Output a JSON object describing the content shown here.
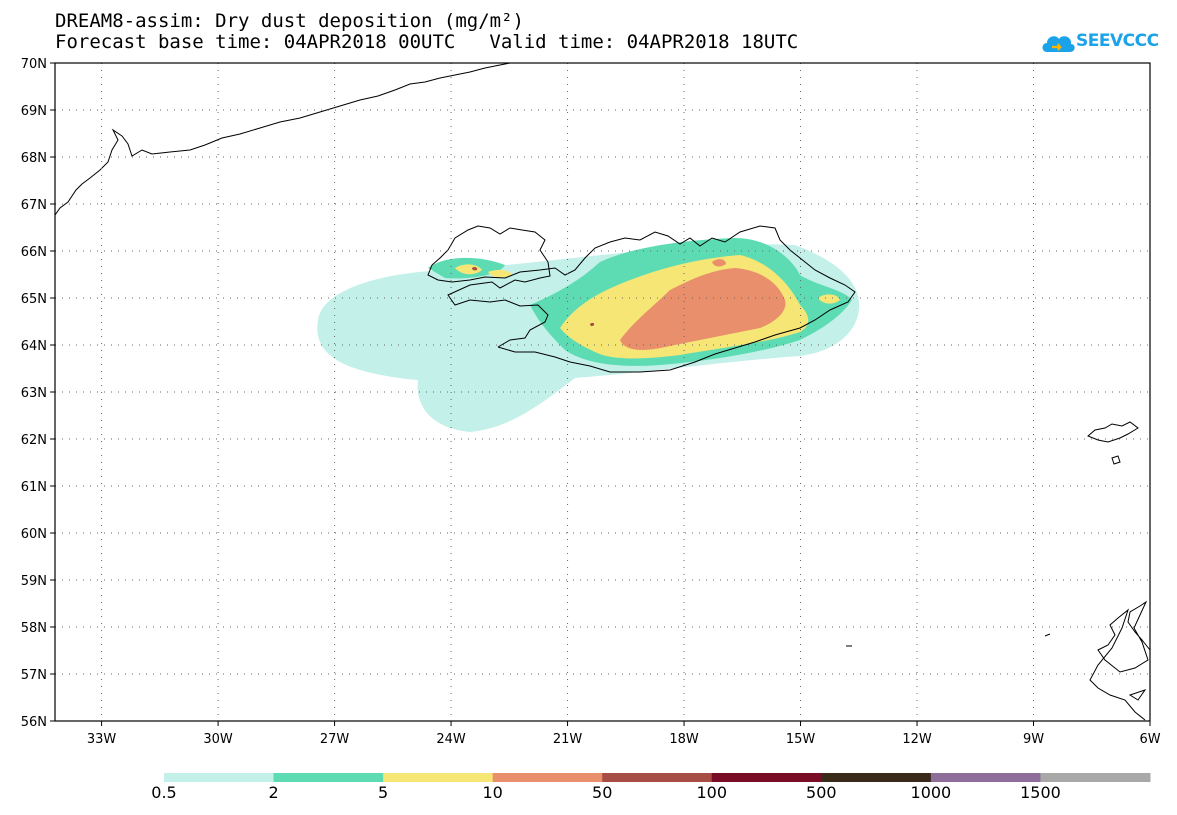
{
  "title": {
    "line1": "DREAM8-assim: Dry dust deposition (mg/m²)",
    "base_time": "Forecast base time: 04APR2018 00UTC",
    "valid_time": "Valid time: 04APR2018 18UTC"
  },
  "logo": {
    "text": "SEEVCCC",
    "icon": "cloud-logo-icon",
    "color": "#1aa3e8"
  },
  "map": {
    "lat_labels": [
      "70N",
      "69N",
      "68N",
      "67N",
      "66N",
      "65N",
      "64N",
      "63N",
      "62N",
      "61N",
      "60N",
      "59N",
      "58N",
      "57N",
      "56N"
    ],
    "lon_labels": [
      "33W",
      "30W",
      "27W",
      "24W",
      "21W",
      "18W",
      "15W",
      "12W",
      "9W",
      "6W"
    ],
    "lat_range": [
      56,
      70
    ],
    "lon_range": [
      -34.2,
      -6
    ],
    "grid": "dotted",
    "coastline_color": "#000000"
  },
  "colorbar": {
    "labels": [
      "0.5",
      "2",
      "5",
      "10",
      "50",
      "100",
      "500",
      "1000",
      "1500"
    ],
    "colors": [
      "#c4f0ea",
      "#5ddcb4",
      "#f5e675",
      "#ea8f6b",
      "#a64d44",
      "#7a0d26",
      "#3a2a1a",
      "#8e6d9a",
      "#a8a8a8"
    ]
  }
}
